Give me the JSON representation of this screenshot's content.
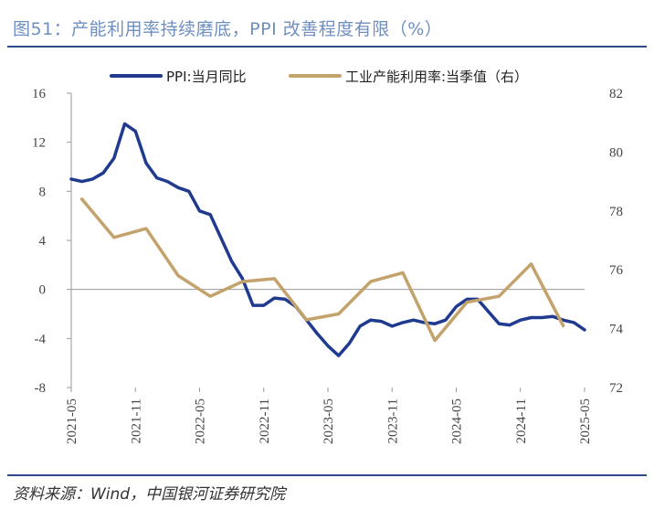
{
  "header": {
    "title": "图51：产能利用率持续磨底，PPI 改善程度有限（%）",
    "source": "资料来源：Wind，中国银河证券研究院"
  },
  "colors": {
    "ppi": "#1f3a8f",
    "capacity": "#c3a36b",
    "rule": "#2d4a8a",
    "axis": "#999999"
  },
  "chart_data": {
    "type": "line",
    "title": "产能利用率持续磨底，PPI 改善程度有限（%）",
    "x_ticks": [
      "2021-05",
      "2021-11",
      "2022-05",
      "2022-11",
      "2023-05",
      "2023-11",
      "2024-05",
      "2024-11",
      "2025-05"
    ],
    "left_axis": {
      "ylim": [
        -8,
        16
      ],
      "ticks": [
        "16",
        "12",
        "8",
        "4",
        "0",
        "-4",
        "-8"
      ]
    },
    "right_axis": {
      "ylim": [
        72,
        82
      ],
      "ticks": [
        "82",
        "80",
        "78",
        "76",
        "74",
        "72"
      ]
    },
    "legend": [
      "PPI:当月同比",
      "工业产能利用率:当季值（右）"
    ],
    "series": [
      {
        "name": "PPI:当月同比",
        "axis": "left",
        "start": "2021-05",
        "freq": "monthly",
        "values": [
          9.0,
          8.8,
          9.0,
          9.5,
          10.7,
          13.5,
          12.9,
          10.3,
          9.1,
          8.8,
          8.3,
          8.0,
          6.4,
          6.1,
          4.2,
          2.3,
          0.9,
          -1.3,
          -1.3,
          -0.7,
          -0.8,
          -1.4,
          -2.5,
          -3.6,
          -4.6,
          -5.4,
          -4.4,
          -3.0,
          -2.5,
          -2.6,
          -3.0,
          -2.7,
          -2.5,
          -2.7,
          -2.8,
          -2.5,
          -1.4,
          -0.8,
          -0.8,
          -1.8,
          -2.8,
          -2.9,
          -2.5,
          -2.3,
          -2.3,
          -2.2,
          -2.5,
          -2.7,
          -3.3
        ]
      },
      {
        "name": "工业产能利用率:当季值（右）",
        "axis": "right",
        "points": [
          [
            "2021-06",
            78.4
          ],
          [
            "2021-09",
            77.1
          ],
          [
            "2021-12",
            77.4
          ],
          [
            "2022-03",
            75.8
          ],
          [
            "2022-06",
            75.1
          ],
          [
            "2022-09",
            75.6
          ],
          [
            "2022-12",
            75.7
          ],
          [
            "2023-03",
            74.3
          ],
          [
            "2023-06",
            74.5
          ],
          [
            "2023-09",
            75.6
          ],
          [
            "2023-12",
            75.9
          ],
          [
            "2024-03",
            73.6
          ],
          [
            "2024-06",
            74.9
          ],
          [
            "2024-09",
            75.1
          ],
          [
            "2024-12",
            76.2
          ],
          [
            "2025-03",
            74.1
          ]
        ]
      }
    ]
  }
}
